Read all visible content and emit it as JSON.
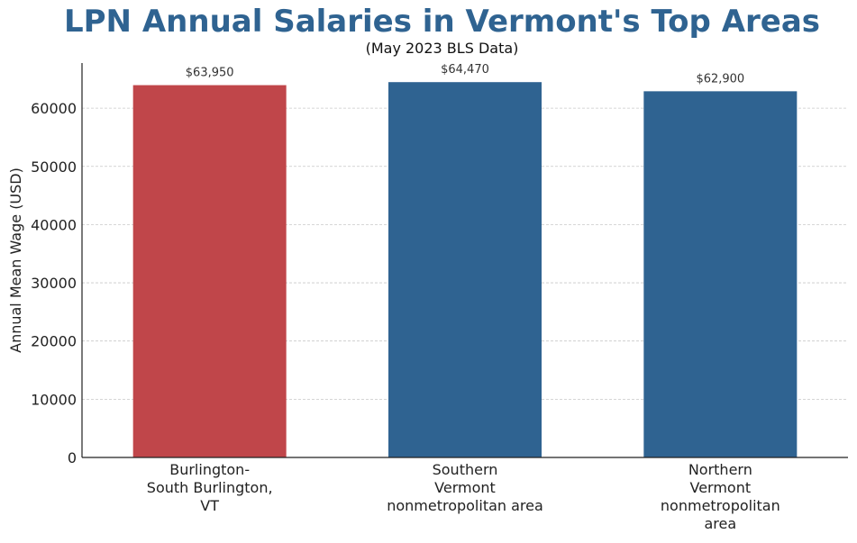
{
  "chart_data": {
    "type": "bar",
    "title": "LPN Annual Salaries in Vermont's Top Areas",
    "subtitle": "(May 2023 BLS Data)",
    "xlabel": "",
    "ylabel": "Annual Mean Wage (USD)",
    "categories": [
      [
        "Burlington-",
        "South Burlington,",
        "VT"
      ],
      [
        "Southern",
        "Vermont",
        "nonmetropolitan area"
      ],
      [
        "Northern",
        "Vermont",
        "nonmetropolitan",
        "area"
      ]
    ],
    "values": [
      63950,
      64470,
      62900
    ],
    "data_labels": [
      "$63,950",
      "$64,470",
      "$62,900"
    ],
    "bar_colors": [
      "#c0464a",
      "#2f6391",
      "#2f6391"
    ],
    "ylim": [
      0,
      67750
    ],
    "yticks": [
      0,
      10000,
      20000,
      30000,
      40000,
      50000,
      60000
    ],
    "grid": "horizontal dashed",
    "legend": "none"
  }
}
